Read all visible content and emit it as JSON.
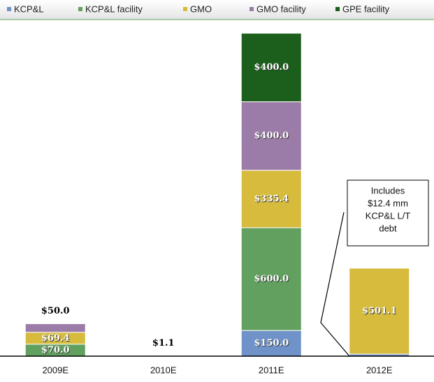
{
  "chart_data": {
    "type": "stacked_bar",
    "categories": [
      "2009E",
      "2010E",
      "2011E",
      "2012E"
    ],
    "series": [
      {
        "name": "KCP&L",
        "color": "#6f93c8",
        "values": [
          null,
          1.1,
          150.0,
          12.4
        ],
        "value_labels": [
          null,
          "$1.1",
          "$150.0",
          null
        ]
      },
      {
        "name": "KCP&L facility",
        "color": "#62a060",
        "values": [
          70.0,
          null,
          600.0,
          null
        ],
        "value_labels": [
          "$70.0",
          null,
          "$600.0",
          null
        ]
      },
      {
        "name": "GMO",
        "color": "#d6bb3c",
        "values": [
          69.4,
          null,
          335.4,
          501.1
        ],
        "value_labels": [
          "$69.4",
          null,
          "$335.4",
          "$501.1"
        ]
      },
      {
        "name": "GMO facility",
        "color": "#9b7ba7",
        "values": [
          50.0,
          null,
          400.0,
          null
        ],
        "value_labels": [
          "$50.0",
          null,
          "$400.0",
          null
        ]
      },
      {
        "name": "GPE facility",
        "color": "#1c5f1c",
        "values": [
          null,
          null,
          400.0,
          null
        ],
        "value_labels": [
          null,
          null,
          "$400.0",
          null
        ]
      }
    ],
    "ylim": [
      0,
      1900
    ],
    "annotation": [
      "Includes",
      "$12.4 mm",
      "KCP&L L/T",
      "debt"
    ]
  }
}
